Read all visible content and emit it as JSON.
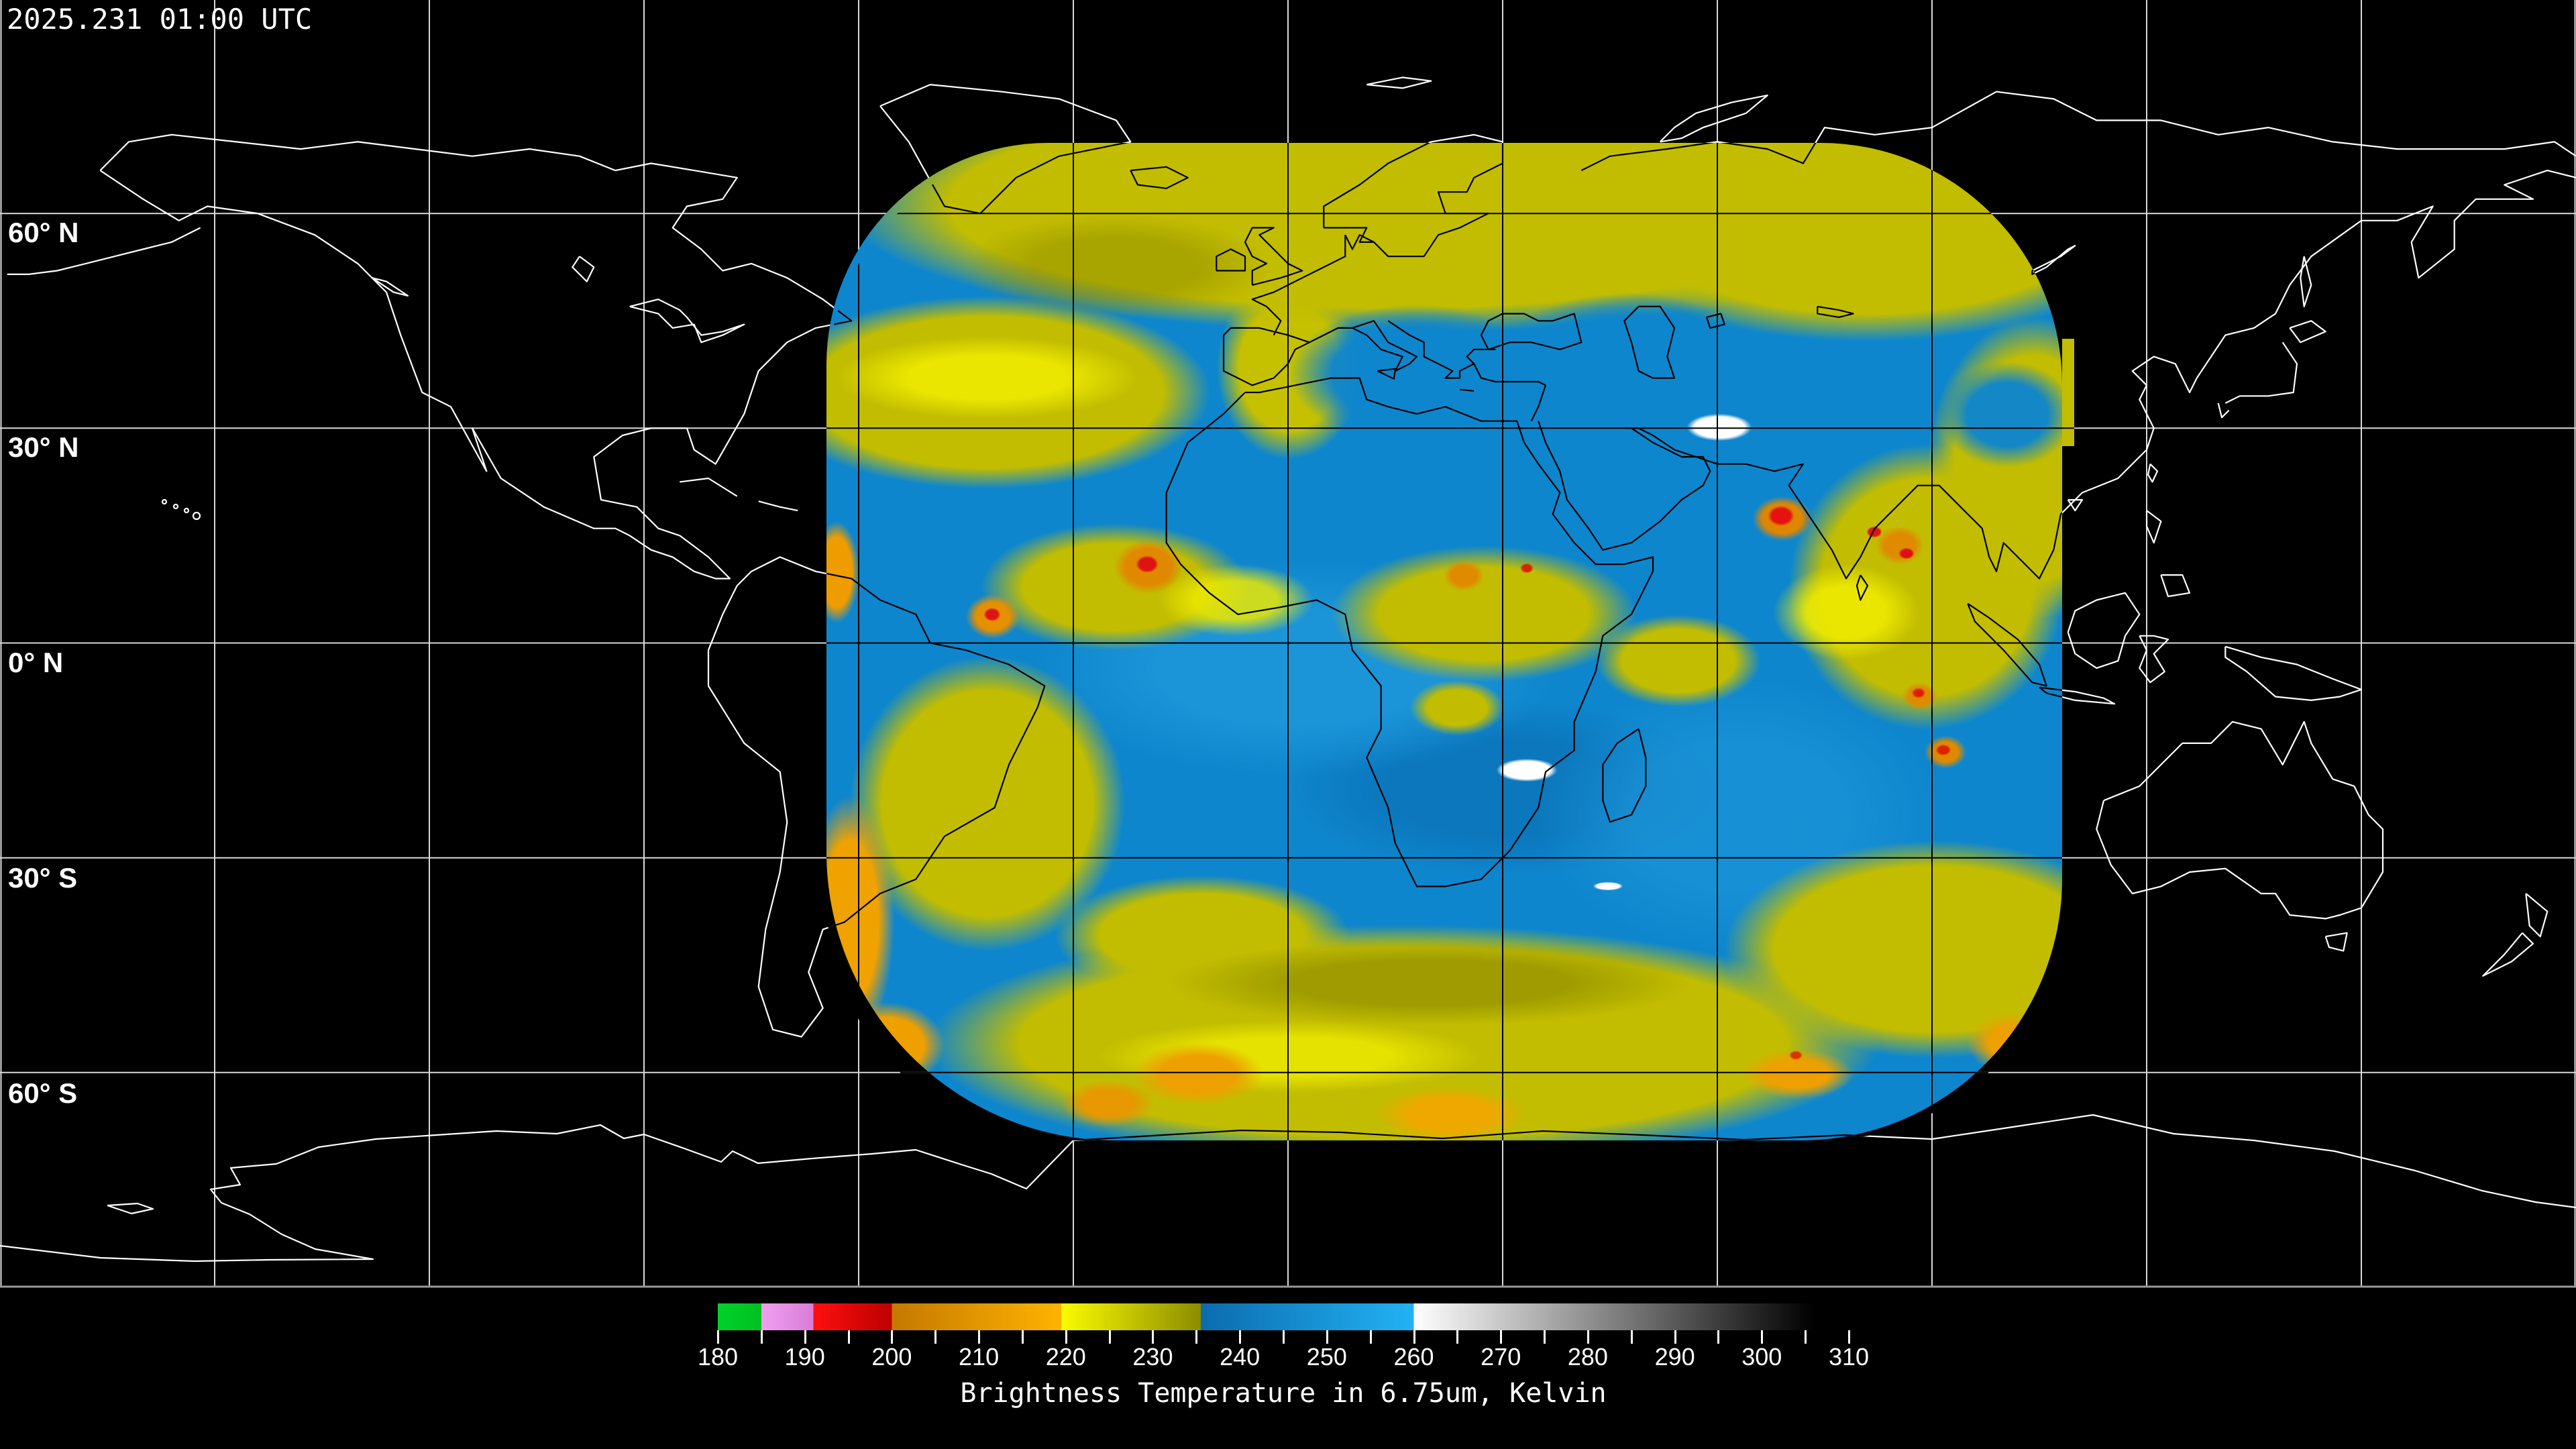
{
  "header": {
    "timestamp": "2025.231 01:00 UTC"
  },
  "map": {
    "latitude_labels": [
      {
        "text": "60° N"
      },
      {
        "text": "30° N"
      },
      {
        "text": "0° N"
      },
      {
        "text": "30° S"
      },
      {
        "text": "60° S"
      }
    ],
    "graticule": {
      "lon_step_deg": 30,
      "lat_step_deg": 30
    },
    "palette": {
      "background": "#000000",
      "coastline_outside": "#ffffff",
      "coastline_inside": "#000000",
      "data_blue": "#0e86cd",
      "data_yellow": "#c2bd00",
      "data_orange": "#efa000",
      "data_red": "#e01212",
      "data_white": "#ffffff"
    }
  },
  "colorbar": {
    "caption": "Brightness Temperature in 6.75um, Kelvin",
    "unit": "Kelvin",
    "min": 180,
    "max": 310,
    "minor_tick_step": 5,
    "major_tick_labels": [
      "180",
      "190",
      "200",
      "210",
      "220",
      "230",
      "240",
      "250",
      "260",
      "270",
      "280",
      "290",
      "300",
      "310"
    ],
    "segments": [
      {
        "from": 180,
        "to": 185,
        "start": "#00d22a",
        "end": "#00c020"
      },
      {
        "from": 185,
        "to": 191,
        "start": "#f0a0f0",
        "end": "#d87cd8"
      },
      {
        "from": 191,
        "to": 200,
        "start": "#ff0f0f",
        "end": "#bd0000"
      },
      {
        "from": 200,
        "to": 219.5,
        "start": "#c47800",
        "end": "#ffb300"
      },
      {
        "from": 219.5,
        "to": 235.5,
        "start": "#fbfb00",
        "end": "#8c8c00"
      },
      {
        "from": 235.5,
        "to": 260,
        "start": "#0b6cae",
        "end": "#22b2f5"
      },
      {
        "from": 260,
        "to": 306,
        "start": "#ffffff",
        "end": "#000000"
      },
      {
        "from": 306,
        "to": 310,
        "start": "#000000",
        "end": "#000000"
      }
    ]
  }
}
